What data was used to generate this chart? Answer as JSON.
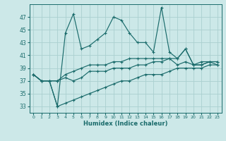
{
  "xlabel": "Humidex (Indice chaleur)",
  "background_color": "#cce8e8",
  "grid_color": "#aad0d0",
  "line_color": "#1a6b6b",
  "x_values": [
    0,
    1,
    2,
    3,
    4,
    5,
    6,
    7,
    8,
    9,
    10,
    11,
    12,
    13,
    14,
    15,
    16,
    17,
    18,
    19,
    20,
    21,
    22,
    23
  ],
  "line1": [
    38,
    37,
    37,
    33,
    44.5,
    47.5,
    42,
    42.5,
    43.5,
    44.5,
    47,
    46.5,
    44.5,
    43,
    43,
    41.5,
    48.5,
    41.5,
    40.5,
    42,
    39.5,
    40,
    40,
    39.5
  ],
  "line2": [
    38,
    37,
    37,
    37,
    37.5,
    37,
    37.5,
    38.5,
    38.5,
    38.5,
    39,
    39,
    39,
    39.5,
    39.5,
    40,
    40,
    40.5,
    39.5,
    40,
    39.5,
    39.5,
    40,
    40
  ],
  "line3": [
    38,
    37,
    37,
    33,
    33.5,
    34,
    34.5,
    35,
    35.5,
    36,
    36.5,
    37,
    37,
    37.5,
    38,
    38,
    38,
    38.5,
    39,
    39,
    39,
    39,
    39.5,
    39.5
  ],
  "line4": [
    38,
    37,
    37,
    37,
    38,
    38.5,
    39,
    39.5,
    39.5,
    39.5,
    40,
    40,
    40.5,
    40.5,
    40.5,
    40.5,
    40.5,
    40.5,
    40.5,
    42,
    39.5,
    39.5,
    40,
    40
  ],
  "ylim": [
    32,
    49
  ],
  "yticks": [
    33,
    35,
    37,
    39,
    41,
    43,
    45,
    47
  ],
  "xlim": [
    -0.5,
    23.5
  ]
}
